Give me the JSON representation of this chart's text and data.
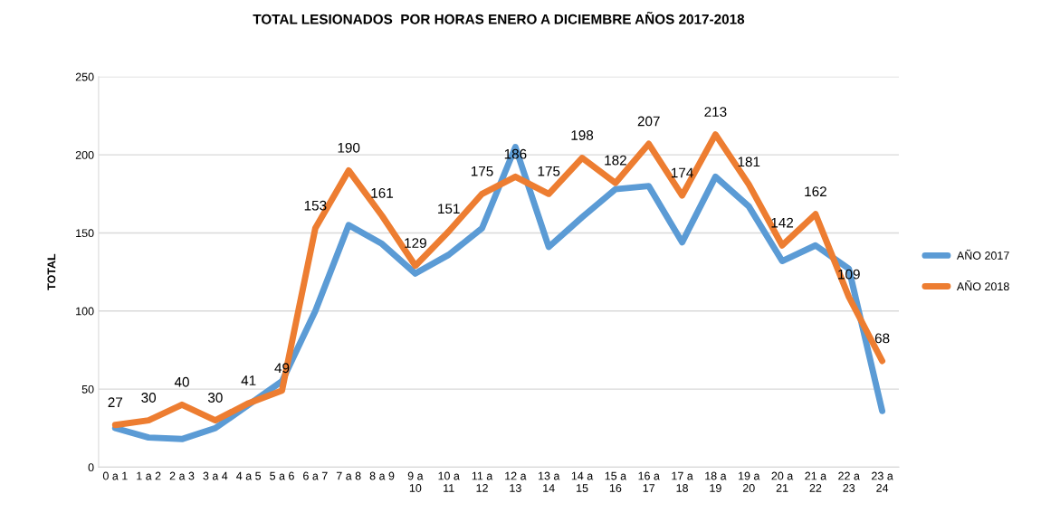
{
  "chart_data": {
    "type": "line",
    "title": "TOTAL LESIONADOS  POR HORAS ENERO A DICIEMBRE AÑOS 2017-2018",
    "ylabel": "TOTAL",
    "categories": [
      "0 a 1",
      "1 a 2",
      "2 a 3",
      "3 a 4",
      "4 a 5",
      "5 a 6",
      "6 a 7",
      "7 a 8",
      "8 a 9",
      "9 a 10",
      "10 a 11",
      "11 a 12",
      "12 a 13",
      "13 a 14",
      "14 a 15",
      "15 a 16",
      "16 a 17",
      "17 a 18",
      "18 a 19",
      "19 a 20",
      "20 a 21",
      "21 a 22",
      "22 a 23",
      "23 a 24"
    ],
    "series": [
      {
        "name": "AÑO 2017",
        "color": "#5b9bd5",
        "values": [
          25,
          19,
          18,
          25,
          40,
          55,
          100,
          155,
          143,
          124,
          136,
          153,
          205,
          141,
          160,
          178,
          180,
          144,
          186,
          167,
          132,
          142,
          127,
          36
        ]
      },
      {
        "name": "AÑO 2018",
        "color": "#ed7d31",
        "values": [
          27,
          30,
          40,
          30,
          41,
          49,
          153,
          190,
          161,
          129,
          151,
          175,
          186,
          175,
          198,
          182,
          207,
          174,
          213,
          181,
          142,
          162,
          109,
          68
        ],
        "value_labels": [
          "27",
          "30",
          "40",
          "30",
          "41",
          "49",
          "153",
          "190",
          "161",
          "129",
          "151",
          "175",
          "186",
          "175",
          "198",
          "182",
          "207",
          "174",
          "213",
          "181",
          "142",
          "162",
          "109",
          "68"
        ]
      }
    ],
    "ylim": [
      0,
      250
    ],
    "yticks": [
      0,
      50,
      100,
      150,
      200,
      250
    ],
    "grid": "y",
    "legend": "right",
    "marker": "none",
    "line_style": "solid"
  }
}
